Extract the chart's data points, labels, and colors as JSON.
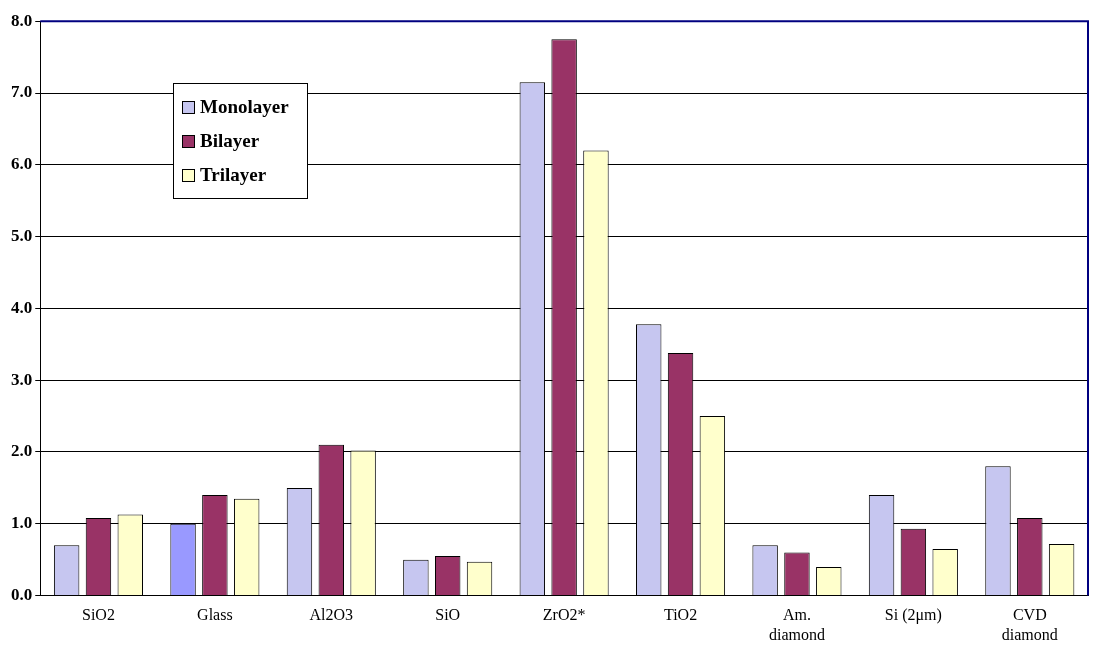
{
  "chart_data": {
    "type": "bar",
    "categories": [
      "SiO2",
      "Glass",
      "Al2O3",
      "SiO",
      "ZrO2*",
      "TiO2",
      "Am.\ndiamond",
      "Si (2μm)",
      "CVD\ndiamond"
    ],
    "series": [
      {
        "name": "Monolayer",
        "color": "#c6c6f0",
        "colors": [
          "#c6c6f0",
          "#9999ff",
          "#c6c6f0",
          "#c6c6f0",
          "#c6c6f0",
          "#c6c6f0",
          "#c6c6f0",
          "#c6c6f0",
          "#c6c6f0"
        ],
        "values": [
          0.7,
          1.0,
          1.5,
          0.5,
          7.15,
          3.78,
          0.7,
          1.4,
          1.8
        ]
      },
      {
        "name": "Bilayer",
        "color": "#993366",
        "values": [
          1.08,
          1.4,
          2.1,
          0.55,
          7.75,
          3.38,
          0.6,
          0.93,
          1.08
        ]
      },
      {
        "name": "Trilayer",
        "color": "#ffffcc",
        "values": [
          1.13,
          1.35,
          2.02,
          0.47,
          6.2,
          2.5,
          0.4,
          0.65,
          0.72
        ]
      }
    ],
    "ylim": [
      0,
      8
    ],
    "yticks": [
      {
        "value": 0,
        "label": "0.0"
      },
      {
        "value": 1,
        "label": "1.0"
      },
      {
        "value": 2,
        "label": "2.0"
      },
      {
        "value": 3,
        "label": "3.0"
      },
      {
        "value": 4,
        "label": "4.0"
      },
      {
        "value": 5,
        "label": "5.0"
      },
      {
        "value": 6,
        "label": "6.0"
      },
      {
        "value": 7,
        "label": "7.0"
      },
      {
        "value": 8,
        "label": "8.0"
      }
    ],
    "grid": "y",
    "legend": "top left"
  }
}
